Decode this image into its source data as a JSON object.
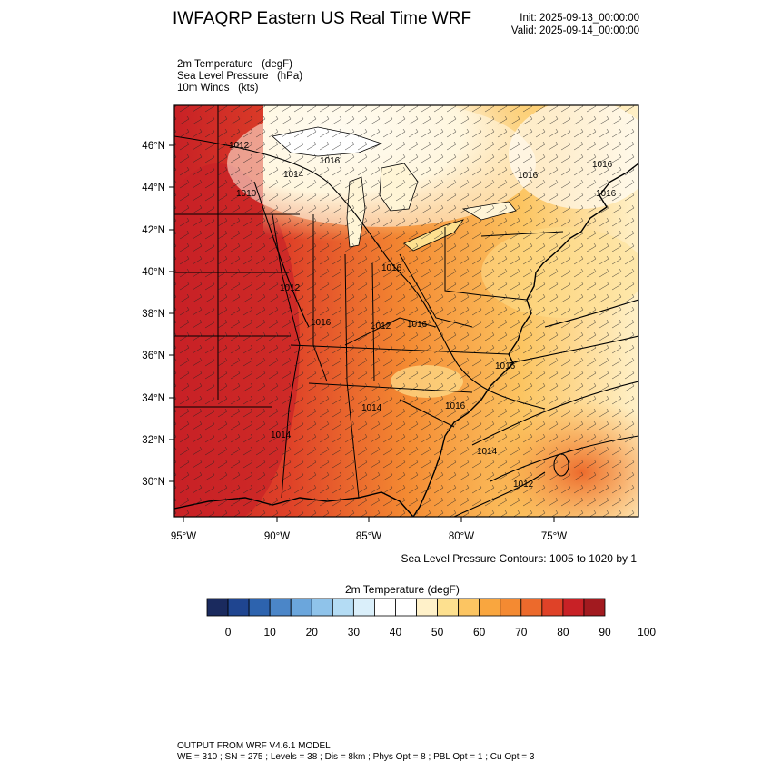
{
  "header": {
    "title": "IWFAQRP Eastern US Real Time WRF",
    "init": "Init: 2025-09-13_00:00:00",
    "valid": "Valid: 2025-09-14_00:00:00"
  },
  "fields": [
    "2m Temperature   (degF)",
    "Sea Level Pressure   (hPa)",
    "10m Winds   (kts)"
  ],
  "map": {
    "lat_labels": [
      "46°N",
      "44°N",
      "42°N",
      "40°N",
      "38°N",
      "36°N",
      "34°N",
      "32°N",
      "30°N"
    ],
    "lon_labels": [
      "95°W",
      "90°W",
      "85°W",
      "80°W",
      "75°W"
    ],
    "contour_labels": [
      "1012",
      "1014",
      "1016",
      "1010",
      "1012",
      "1016",
      "1016",
      "1012",
      "1016",
      "1016",
      "1016",
      "1016",
      "1014",
      "1016",
      "1016",
      "1014",
      "1014",
      "1012"
    ],
    "contour_note": "Sea Level Pressure Contours: 1005 to 1020 by 1"
  },
  "colorbar": {
    "title": "2m Temperature  (degF)",
    "labels": [
      "0",
      "10",
      "20",
      "30",
      "40",
      "50",
      "60",
      "70",
      "80",
      "90",
      "100"
    ],
    "colors": [
      "#1a2a5e",
      "#1f4590",
      "#2d63ae",
      "#4b86c8",
      "#6ba6dc",
      "#8fc3ea",
      "#b4dcf4",
      "#daeffa",
      "#ffffff",
      "#ffffff",
      "#fff1c9",
      "#fde08f",
      "#fcc562",
      "#f9a63f",
      "#f48a32",
      "#ec6a2c",
      "#df4228",
      "#c82126",
      "#a21a1f"
    ]
  },
  "footer": {
    "line1": "OUTPUT FROM WRF V4.6.1 MODEL",
    "line2": "WE = 310 ; SN = 275 ; Levels = 38 ; Dis = 8km ; Phys Opt = 8 ; PBL Opt = 1 ; Cu Opt = 3"
  }
}
